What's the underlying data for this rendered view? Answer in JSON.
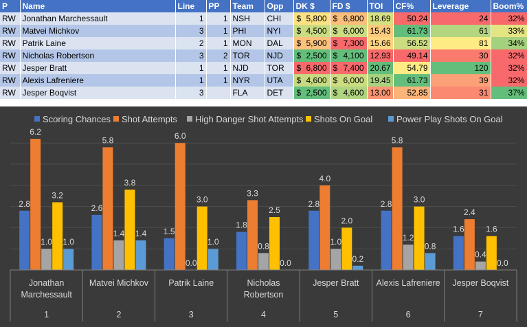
{
  "table": {
    "headers": [
      "P",
      "Name",
      "Line",
      "PP",
      "Team",
      "Opp",
      "DK $",
      "FD $",
      "TOI",
      "CF%",
      "Leverage",
      "Boom%"
    ],
    "rows": [
      {
        "P": "RW",
        "Name": "Jonathan Marchessault",
        "Line": "1",
        "PP": "1",
        "Team": "NSH",
        "Opp": "CHI",
        "DK": "5,800",
        "FD": "6,800",
        "TOI": "18.69",
        "CF": "50.24",
        "Leverage": "24",
        "Boom": "32%"
      },
      {
        "P": "RW",
        "Name": "Matvei Michkov",
        "Line": "3",
        "PP": "1",
        "Team": "PHI",
        "Opp": "NYI",
        "DK": "4,500",
        "FD": "6,000",
        "TOI": "15.43",
        "CF": "61.73",
        "Leverage": "61",
        "Boom": "33%"
      },
      {
        "P": "RW",
        "Name": "Patrik Laine",
        "Line": "2",
        "PP": "1",
        "Team": "MON",
        "Opp": "DAL",
        "DK": "5,900",
        "FD": "7,300",
        "TOI": "15.66",
        "CF": "56.52",
        "Leverage": "81",
        "Boom": "34%"
      },
      {
        "P": "RW",
        "Name": "Nicholas Robertson",
        "Line": "3",
        "PP": "2",
        "Team": "TOR",
        "Opp": "NJD",
        "DK": "2,500",
        "FD": "4,100",
        "TOI": "12.93",
        "CF": "49.14",
        "Leverage": "30",
        "Boom": "32%"
      },
      {
        "P": "RW",
        "Name": "Jesper Bratt",
        "Line": "1",
        "PP": "1",
        "Team": "NJD",
        "Opp": "TOR",
        "DK": "6,800",
        "FD": "7,400",
        "TOI": "20.67",
        "CF": "54.79",
        "Leverage": "120",
        "Boom": "32%"
      },
      {
        "P": "RW",
        "Name": "Alexis Lafreniere",
        "Line": "1",
        "PP": "1",
        "Team": "NYR",
        "Opp": "UTA",
        "DK": "4,600",
        "FD": "6,000",
        "TOI": "19.45",
        "CF": "61.73",
        "Leverage": "39",
        "Boom": "32%"
      },
      {
        "P": "RW",
        "Name": "Jesper Boqvist",
        "Line": "3",
        "PP": "",
        "Team": "FLA",
        "Opp": "DET",
        "DK": "2,500",
        "FD": "4,600",
        "TOI": "13.00",
        "CF": "52.85",
        "Leverage": "31",
        "Boom": "37%"
      }
    ],
    "currency_symbol": "$",
    "cell_colors": {
      "DK": [
        "#fbe183",
        "#c9dc81",
        "#fcc17b",
        "#63be7b",
        "#f8696b",
        "#c6db81",
        "#63be7b"
      ],
      "FD": [
        "#fbbe7b",
        "#cbdc81",
        "#f8696b",
        "#63be7b",
        "#f8696b",
        "#cbdc81",
        "#b0d580"
      ],
      "TOI": [
        "#d6e082",
        "#fdca7d",
        "#fed580",
        "#f8696b",
        "#63be7b",
        "#a9d27f",
        "#fa9473"
      ],
      "CF": [
        "#f8696b",
        "#63be7b",
        "#cbdc81",
        "#f8696b",
        "#ffeb84",
        "#63be7b",
        "#fcb479"
      ],
      "Leverage": [
        "#f8696b",
        "#b5d680",
        "#ffeb84",
        "#f97b6e",
        "#63be7b",
        "#fca077",
        "#f98a71"
      ],
      "Boom": [
        "#f8696b",
        "#e3e482",
        "#a4d17e",
        "#f8696b",
        "#f8696b",
        "#f8696b",
        "#63be7b"
      ]
    }
  },
  "chart_data": {
    "type": "bar",
    "categories": [
      "Jonathan Marchessault",
      "Matvei Michkov",
      "Patrik Laine",
      "Nicholas Robertson",
      "Jesper Bratt",
      "Alexis Lafreniere",
      "Jesper Boqvist"
    ],
    "category_lines": [
      [
        "Jonathan",
        "Marchessault"
      ],
      [
        "Matvei Michkov"
      ],
      [
        "Patrik Laine"
      ],
      [
        "Nicholas",
        "Robertson"
      ],
      [
        "Jesper Bratt"
      ],
      [
        "Alexis Lafreniere"
      ],
      [
        "Jesper Boqvist"
      ]
    ],
    "group_labels": [
      "1",
      "2",
      "3",
      "4",
      "5",
      "6",
      "7"
    ],
    "series": [
      {
        "name": "Scoring Chances",
        "color": "#4472c4",
        "values": [
          2.8,
          2.6,
          1.5,
          1.8,
          2.8,
          2.8,
          1.6
        ]
      },
      {
        "name": "Shot Attempts",
        "color": "#ed7d31",
        "values": [
          6.2,
          5.8,
          6.0,
          3.3,
          4.0,
          5.8,
          2.4
        ]
      },
      {
        "name": "High Danger Shot Attempts",
        "color": "#a5a5a5",
        "values": [
          1.0,
          1.4,
          0.0,
          0.8,
          1.0,
          1.2,
          0.4
        ]
      },
      {
        "name": "Shots On Goal",
        "color": "#ffc000",
        "values": [
          3.2,
          3.8,
          3.0,
          2.5,
          2.0,
          3.0,
          1.6
        ]
      },
      {
        "name": "Power Play Shots On Goal",
        "color": "#5b9bd5",
        "values": [
          1.0,
          1.4,
          1.0,
          0.0,
          0.2,
          0.8,
          0.0
        ]
      }
    ],
    "ylim": [
      0,
      7
    ],
    "grid": true,
    "legend_position": "top",
    "title": "",
    "xlabel": "",
    "ylabel": ""
  }
}
